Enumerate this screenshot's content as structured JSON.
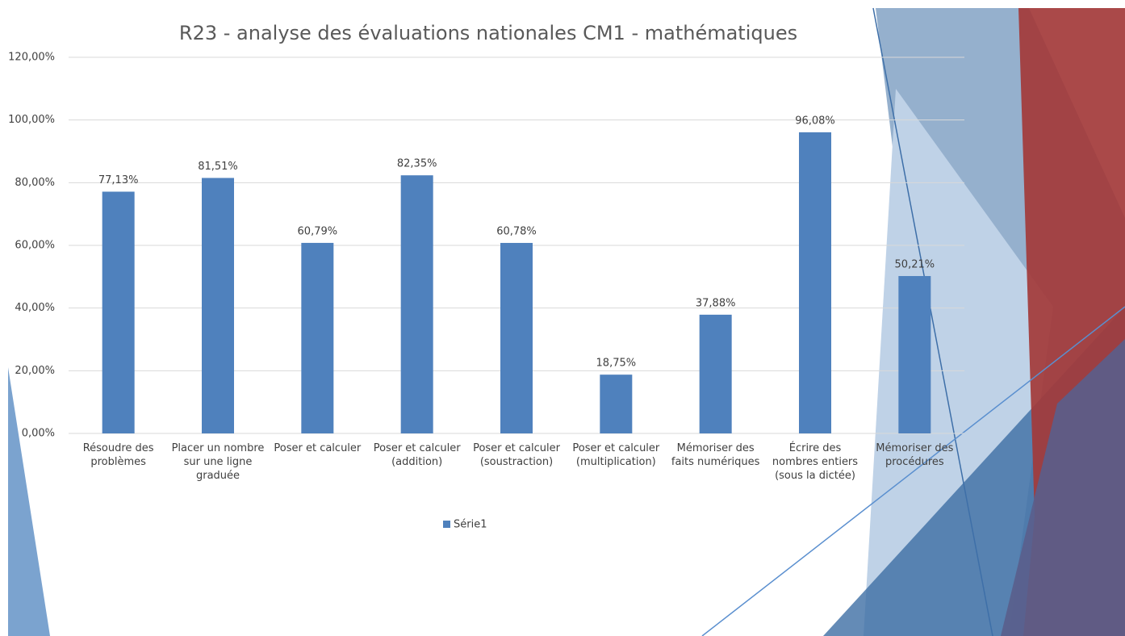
{
  "chart_data": {
    "type": "bar",
    "title": "R23 - analyse des évaluations nationales CM1 - mathématiques",
    "categories": [
      "Résoudre des problèmes",
      "Placer un nombre sur une ligne graduée",
      "Poser et calculer",
      "Poser et calculer (addition)",
      "Poser et calculer (soustraction)",
      "Poser et calculer (multiplication)",
      "Mémoriser des faits numériques",
      "Écrire des nombres entiers (sous la dictée)",
      "Mémoriser des procédures"
    ],
    "series": [
      {
        "name": "Série1",
        "color": "#4f81bd",
        "values": [
          77.13,
          81.51,
          60.79,
          82.35,
          60.78,
          18.75,
          37.88,
          96.08,
          50.21
        ],
        "value_labels": [
          "77,13%",
          "81,51%",
          "60,79%",
          "82,35%",
          "60,78%",
          "18,75%",
          "37,88%",
          "96,08%",
          "50,21%"
        ]
      }
    ],
    "ylim": [
      0,
      120
    ],
    "yticks": [
      {
        "value": 0,
        "label": "0,00%"
      },
      {
        "value": 20,
        "label": "20,00%"
      },
      {
        "value": 40,
        "label": "40,00%"
      },
      {
        "value": 60,
        "label": "60,00%"
      },
      {
        "value": 80,
        "label": "80,00%"
      },
      {
        "value": 100,
        "label": "100,00%"
      },
      {
        "value": 120,
        "label": "120,00%"
      }
    ],
    "grid": true,
    "legend": "bottom"
  }
}
